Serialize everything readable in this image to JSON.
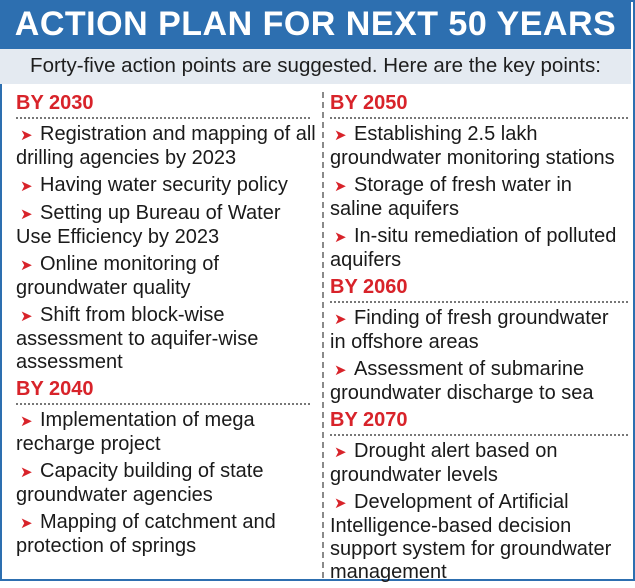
{
  "title": "ACTION PLAN FOR NEXT 50 YEARS",
  "subtitle": "Forty-five action points are suggested. Here are the key points:",
  "colors": {
    "header_bg": "#2d6fb0",
    "subtitle_bg": "#e4eaf1",
    "accent": "#d8232a"
  },
  "bullet_icon": "red-arrow-bullet",
  "left": {
    "by2030": {
      "heading": "BY 2030",
      "items": [
        "Registration and mapping of all drilling agencies by 2023",
        "Having water security policy",
        "Setting up Bureau of Water Use Efficiency by 2023",
        "Online monitoring of groundwater quality",
        "Shift from block-wise assessment to aquifer-wise assessment"
      ]
    },
    "by2040": {
      "heading": "BY 2040",
      "items": [
        "Implementation of mega recharge project",
        "Capacity building of state groundwater agencies",
        "Mapping of catchment and protection of springs"
      ]
    }
  },
  "right": {
    "by2050": {
      "heading": "BY 2050",
      "items": [
        "Establishing 2.5 lakh groundwater monitoring stations",
        "Storage of fresh water in saline aquifers",
        "In-situ remediation of polluted aquifers"
      ]
    },
    "by2060": {
      "heading": "BY 2060",
      "items": [
        "Finding of fresh groundwater in offshore areas",
        "Assessment of submarine groundwater discharge to sea"
      ]
    },
    "by2070": {
      "heading": "BY 2070",
      "items": [
        "Drought alert based on groundwater levels",
        "Development of Artificial Intelligence-based decision support system for groundwater management"
      ]
    }
  }
}
